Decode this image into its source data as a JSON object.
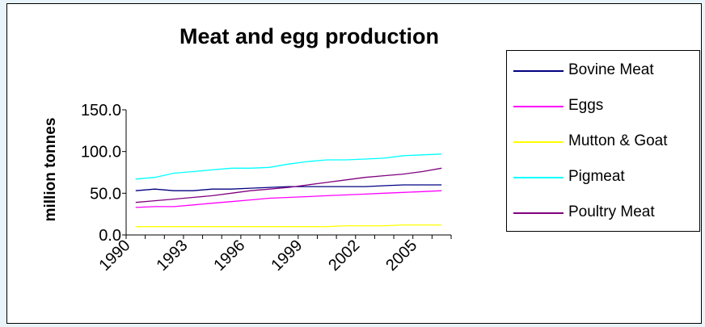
{
  "chart_data": {
    "type": "line",
    "title": "Meat and egg production",
    "ylabel": "million tonnes",
    "xlabel": "",
    "ylim": [
      0,
      150
    ],
    "yticks": [
      "0.0",
      "50.0",
      "100.0",
      "150.0"
    ],
    "x": [
      1990,
      1991,
      1992,
      1993,
      1994,
      1995,
      1996,
      1997,
      1998,
      1999,
      2000,
      2001,
      2002,
      2003,
      2004,
      2005,
      2006
    ],
    "xtick_labels": [
      "1990",
      "1993",
      "1996",
      "1999",
      "2002",
      "2005"
    ],
    "legend_position": "right",
    "series": [
      {
        "name": "Bovine Meat",
        "color": "#000080",
        "values": [
          53,
          55,
          53,
          53,
          55,
          55,
          56,
          57,
          58,
          58,
          58,
          58,
          58,
          59,
          60,
          60,
          60
        ]
      },
      {
        "name": "Eggs",
        "color": "#ff00ff",
        "values": [
          33,
          34,
          34,
          36,
          38,
          40,
          42,
          44,
          45,
          46,
          47,
          48,
          49,
          50,
          51,
          52,
          53
        ]
      },
      {
        "name": "Mutton & Goat",
        "color": "#ffff00",
        "values": [
          10,
          10,
          10,
          10,
          10,
          10,
          10,
          10,
          10,
          10,
          10,
          11,
          11,
          11,
          12,
          12,
          12
        ]
      },
      {
        "name": "Pigmeat",
        "color": "#00ffff",
        "values": [
          67,
          69,
          74,
          76,
          78,
          80,
          80,
          81,
          85,
          88,
          90,
          90,
          91,
          92,
          95,
          96,
          97
        ]
      },
      {
        "name": "Poultry Meat",
        "color": "#800080",
        "values": [
          39,
          41,
          43,
          45,
          47,
          50,
          53,
          55,
          57,
          60,
          63,
          66,
          69,
          71,
          73,
          76,
          80
        ]
      }
    ]
  }
}
